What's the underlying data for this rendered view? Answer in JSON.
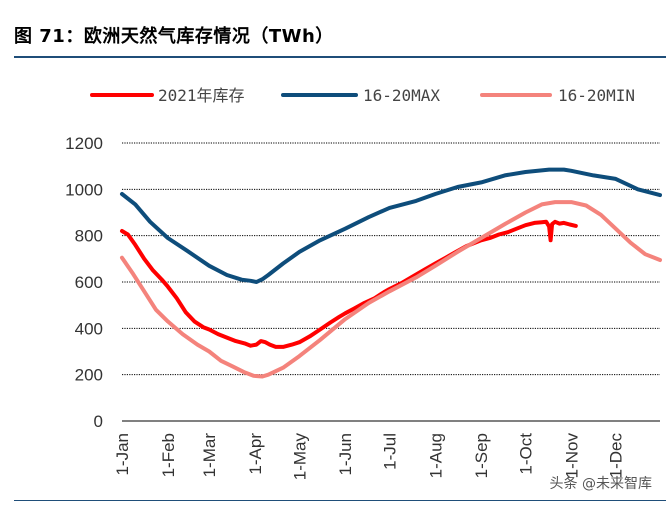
{
  "header": {
    "title": "图 71：欧洲天然气库存情况（TWh）"
  },
  "watermark": "头条 @未来智库",
  "colors": {
    "rule": "#1f4e79",
    "grid": "#000000",
    "series_2021": "#ff0000",
    "series_max": "#0e4d7b",
    "series_min": "#f4837c"
  },
  "chart_data": {
    "type": "line",
    "title": "欧洲天然气库存情况（TWh）",
    "xlabel": "",
    "ylabel": "",
    "ylim": [
      0,
      1200
    ],
    "yticks": [
      0,
      200,
      400,
      600,
      800,
      1000,
      1200
    ],
    "grid": true,
    "legend": "top",
    "x_unit": "day_of_year",
    "xlim": [
      1,
      365
    ],
    "categories": [
      "1-Jan",
      "1-Feb",
      "1-Mar",
      "1-Apr",
      "1-May",
      "1-Jun",
      "1-Jul",
      "1-Aug",
      "1-Sep",
      "1-Oct",
      "1-Nov",
      "1-Dec"
    ],
    "category_days": [
      1,
      32,
      60,
      91,
      121,
      152,
      182,
      213,
      244,
      274,
      305,
      335
    ],
    "series": [
      {
        "name": "2021年库存",
        "color": "#ff0000",
        "x": [
          1,
          5,
          10,
          16,
          22,
          28,
          32,
          38,
          44,
          50,
          56,
          60,
          66,
          72,
          78,
          84,
          88,
          92,
          95,
          98,
          101,
          105,
          110,
          116,
          121,
          128,
          135,
          142,
          148,
          152,
          158,
          165,
          172,
          178,
          182,
          190,
          198,
          206,
          213,
          220,
          227,
          234,
          240,
          244,
          250,
          256,
          262,
          268,
          274,
          280,
          285,
          288,
          290,
          291,
          292,
          294,
          297,
          300,
          304,
          308
        ],
        "values": [
          820,
          805,
          760,
          700,
          650,
          610,
          580,
          530,
          470,
          430,
          405,
          395,
          375,
          360,
          345,
          335,
          325,
          330,
          345,
          340,
          330,
          320,
          320,
          330,
          340,
          365,
          395,
          425,
          450,
          465,
          485,
          510,
          530,
          555,
          570,
          595,
          625,
          655,
          680,
          705,
          730,
          755,
          770,
          780,
          790,
          805,
          815,
          830,
          845,
          855,
          858,
          860,
          840,
          780,
          850,
          860,
          852,
          855,
          848,
          842
        ]
      },
      {
        "name": "16-20MAX",
        "color": "#0e4d7b",
        "x": [
          1,
          10,
          20,
          32,
          45,
          60,
          72,
          82,
          88,
          92,
          96,
          100,
          110,
          121,
          135,
          152,
          168,
          182,
          200,
          213,
          228,
          244,
          260,
          274,
          290,
          300,
          305,
          320,
          335,
          350,
          365
        ],
        "values": [
          980,
          935,
          860,
          790,
          735,
          670,
          630,
          610,
          605,
          600,
          612,
          630,
          680,
          730,
          780,
          830,
          880,
          920,
          950,
          980,
          1010,
          1030,
          1060,
          1075,
          1085,
          1085,
          1080,
          1060,
          1045,
          1000,
          975
        ]
      },
      {
        "name": "16-20MIN",
        "color": "#f4837c",
        "x": [
          1,
          8,
          16,
          24,
          32,
          42,
          52,
          60,
          68,
          76,
          84,
          90,
          96,
          100,
          110,
          121,
          135,
          152,
          168,
          182,
          200,
          213,
          228,
          244,
          260,
          274,
          285,
          294,
          305,
          315,
          325,
          335,
          345,
          355,
          365
        ],
        "values": [
          705,
          640,
          560,
          480,
          430,
          375,
          330,
          300,
          260,
          235,
          210,
          195,
          192,
          200,
          230,
          280,
          350,
          440,
          510,
          560,
          620,
          670,
          730,
          790,
          850,
          900,
          935,
          945,
          945,
          930,
          890,
          830,
          770,
          720,
          695
        ]
      }
    ]
  }
}
